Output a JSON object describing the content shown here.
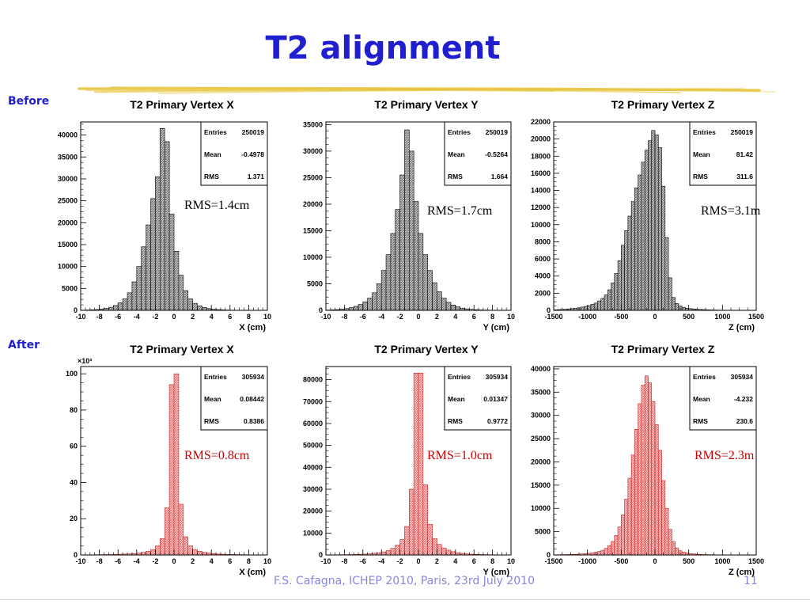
{
  "slide": {
    "title": "T2 alignment",
    "before_label": "Before",
    "after_label": "After",
    "footer": "F.S. Cafagna, ICHEP 2010, Paris, 23rd July 2010",
    "page": "11"
  },
  "colors": {
    "title": "#1f1fd0",
    "before_fill": "#6e6e6e",
    "after_fill": "#ee6f6f",
    "after_text": "#cc0000",
    "brush": "#e8c642"
  },
  "chart_data": [
    {
      "type": "bar",
      "row": "before",
      "col": 0,
      "title": "T2 Primary Vertex X",
      "xlabel": "X (cm)",
      "ylabel": "",
      "xlim": [
        -10,
        10
      ],
      "ylim": [
        0,
        43000
      ],
      "xticks": [
        -10,
        -8,
        -6,
        -4,
        -2,
        0,
        2,
        4,
        6,
        8,
        10
      ],
      "yticks": [
        0,
        5000,
        10000,
        15000,
        20000,
        25000,
        30000,
        35000,
        40000
      ],
      "exponent_label": "",
      "stats": {
        "entries": "250019",
        "mean": "-0.4978",
        "rms": "1.371"
      },
      "rms_note": "RMS=1.4cm",
      "bin_edges_start": -10,
      "bin_width": 0.5,
      "values": [
        50,
        80,
        120,
        180,
        300,
        450,
        700,
        1100,
        1700,
        2600,
        4000,
        6500,
        10000,
        14500,
        19500,
        25500,
        30500,
        41500,
        38500,
        22000,
        13500,
        8000,
        4500,
        2600,
        1600,
        1000,
        650,
        400,
        260,
        170,
        110,
        70,
        50,
        35,
        25,
        18,
        12,
        8,
        5,
        3
      ]
    },
    {
      "type": "bar",
      "row": "before",
      "col": 1,
      "title": "T2 Primary Vertex Y",
      "xlabel": "Y (cm)",
      "ylabel": "",
      "xlim": [
        -10,
        10
      ],
      "ylim": [
        0,
        35500
      ],
      "xticks": [
        -10,
        -8,
        -6,
        -4,
        -2,
        0,
        2,
        4,
        6,
        8,
        10
      ],
      "yticks": [
        0,
        5000,
        10000,
        15000,
        20000,
        25000,
        30000,
        35000
      ],
      "exponent_label": "",
      "stats": {
        "entries": "250019",
        "mean": "-0.5264",
        "rms": "1.664"
      },
      "rms_note": "RMS=1.7cm",
      "bin_edges_start": -10,
      "bin_width": 0.5,
      "values": [
        60,
        90,
        140,
        220,
        330,
        500,
        750,
        1100,
        1600,
        2300,
        3300,
        5000,
        7500,
        10500,
        14500,
        19000,
        25500,
        34000,
        30000,
        20500,
        14500,
        10500,
        7500,
        5200,
        3500,
        2300,
        1500,
        1000,
        650,
        420,
        280,
        180,
        120,
        80,
        55,
        35,
        22,
        14,
        8,
        5
      ]
    },
    {
      "type": "bar",
      "row": "before",
      "col": 2,
      "title": "T2 Primary Vertex Z",
      "xlabel": "Z (cm)",
      "ylabel": "",
      "xlim": [
        -1500,
        1500
      ],
      "ylim": [
        0,
        22000
      ],
      "xticks": [
        -1500,
        -1000,
        -500,
        0,
        500,
        1000,
        1500
      ],
      "yticks": [
        0,
        2000,
        4000,
        6000,
        8000,
        10000,
        12000,
        14000,
        16000,
        18000,
        20000,
        22000
      ],
      "exponent_label": "",
      "stats": {
        "entries": "250019",
        "mean": "81.42",
        "rms": "311.6"
      },
      "rms_note": "RMS=3.1m",
      "bin_edges_start": -1500,
      "bin_width": 50,
      "values": [
        60,
        80,
        100,
        130,
        160,
        200,
        250,
        300,
        380,
        450,
        550,
        700,
        850,
        1100,
        1400,
        1800,
        2400,
        3200,
        4300,
        5800,
        7600,
        9300,
        11000,
        12700,
        14300,
        15800,
        17300,
        18700,
        19800,
        21000,
        20500,
        19000,
        14500,
        8500,
        3800,
        1500,
        800,
        500,
        350,
        250,
        200,
        160,
        130,
        100,
        80,
        60,
        50,
        40,
        30,
        20
      ]
    },
    {
      "type": "bar",
      "row": "after",
      "col": 0,
      "title": "T2 Primary Vertex X",
      "xlabel": "X (cm)",
      "ylabel": "",
      "xlim": [
        -10,
        10
      ],
      "ylim": [
        0,
        104
      ],
      "xticks": [
        -10,
        -8,
        -6,
        -4,
        -2,
        0,
        2,
        4,
        6,
        8,
        10
      ],
      "yticks": [
        0,
        20,
        40,
        60,
        80,
        100
      ],
      "exponent_label": "×10³",
      "stats": {
        "entries": "305934",
        "mean": "0.08442",
        "rms": "0.8386"
      },
      "rms_note": "RMS=0.8cm",
      "bin_edges_start": -10,
      "bin_width": 0.5,
      "values": [
        0.05,
        0.07,
        0.1,
        0.12,
        0.15,
        0.2,
        0.25,
        0.3,
        0.4,
        0.5,
        0.6,
        0.8,
        1.0,
        1.4,
        2.0,
        3.0,
        5.0,
        9.0,
        26,
        94,
        100,
        28,
        10,
        5,
        3,
        2,
        1.4,
        1.0,
        0.7,
        0.5,
        0.4,
        0.3,
        0.25,
        0.2,
        0.15,
        0.12,
        0.1,
        0.08,
        0.06,
        0.05
      ]
    },
    {
      "type": "bar",
      "row": "after",
      "col": 1,
      "title": "T2 Primary Vertex Y",
      "xlabel": "Y (cm)",
      "ylabel": "",
      "xlim": [
        -10,
        10
      ],
      "ylim": [
        0,
        86000
      ],
      "xticks": [
        -10,
        -8,
        -6,
        -4,
        -2,
        0,
        2,
        4,
        6,
        8,
        10
      ],
      "yticks": [
        0,
        10000,
        20000,
        30000,
        40000,
        50000,
        60000,
        70000,
        80000
      ],
      "exponent_label": "",
      "stats": {
        "entries": "305934",
        "mean": "0.01347",
        "rms": "0.9772"
      },
      "rms_note": "RMS=1.0cm",
      "bin_edges_start": -10,
      "bin_width": 0.5,
      "values": [
        40,
        60,
        80,
        100,
        130,
        170,
        220,
        300,
        400,
        550,
        750,
        1000,
        1400,
        2000,
        3000,
        4500,
        7000,
        13000,
        30000,
        83000,
        83000,
        32000,
        14000,
        7500,
        4800,
        3200,
        2200,
        1500,
        1000,
        700,
        500,
        350,
        260,
        190,
        140,
        100,
        80,
        60,
        45,
        35
      ]
    },
    {
      "type": "bar",
      "row": "after",
      "col": 2,
      "title": "T2 Primary Vertex Z",
      "xlabel": "Z (cm)",
      "ylabel": "",
      "xlim": [
        -1500,
        1500
      ],
      "ylim": [
        0,
        40500
      ],
      "xticks": [
        -1500,
        -1000,
        -500,
        0,
        500,
        1000,
        1500
      ],
      "yticks": [
        0,
        5000,
        10000,
        15000,
        20000,
        25000,
        30000,
        35000,
        40000
      ],
      "exponent_label": "",
      "stats": {
        "entries": "305934",
        "mean": "-4.232",
        "rms": "230.6"
      },
      "rms_note": "RMS=2.3m",
      "bin_edges_start": -1500,
      "bin_width": 50,
      "values": [
        40,
        50,
        60,
        80,
        100,
        120,
        150,
        180,
        220,
        280,
        350,
        450,
        580,
        750,
        1000,
        1400,
        2000,
        2900,
        4200,
        6000,
        8600,
        12000,
        16500,
        21500,
        27000,
        32500,
        36500,
        38500,
        37000,
        33000,
        28000,
        22500,
        16000,
        10000,
        5500,
        2800,
        1500,
        900,
        600,
        420,
        300,
        220,
        160,
        120,
        90,
        70,
        55,
        40,
        30,
        20
      ]
    }
  ]
}
